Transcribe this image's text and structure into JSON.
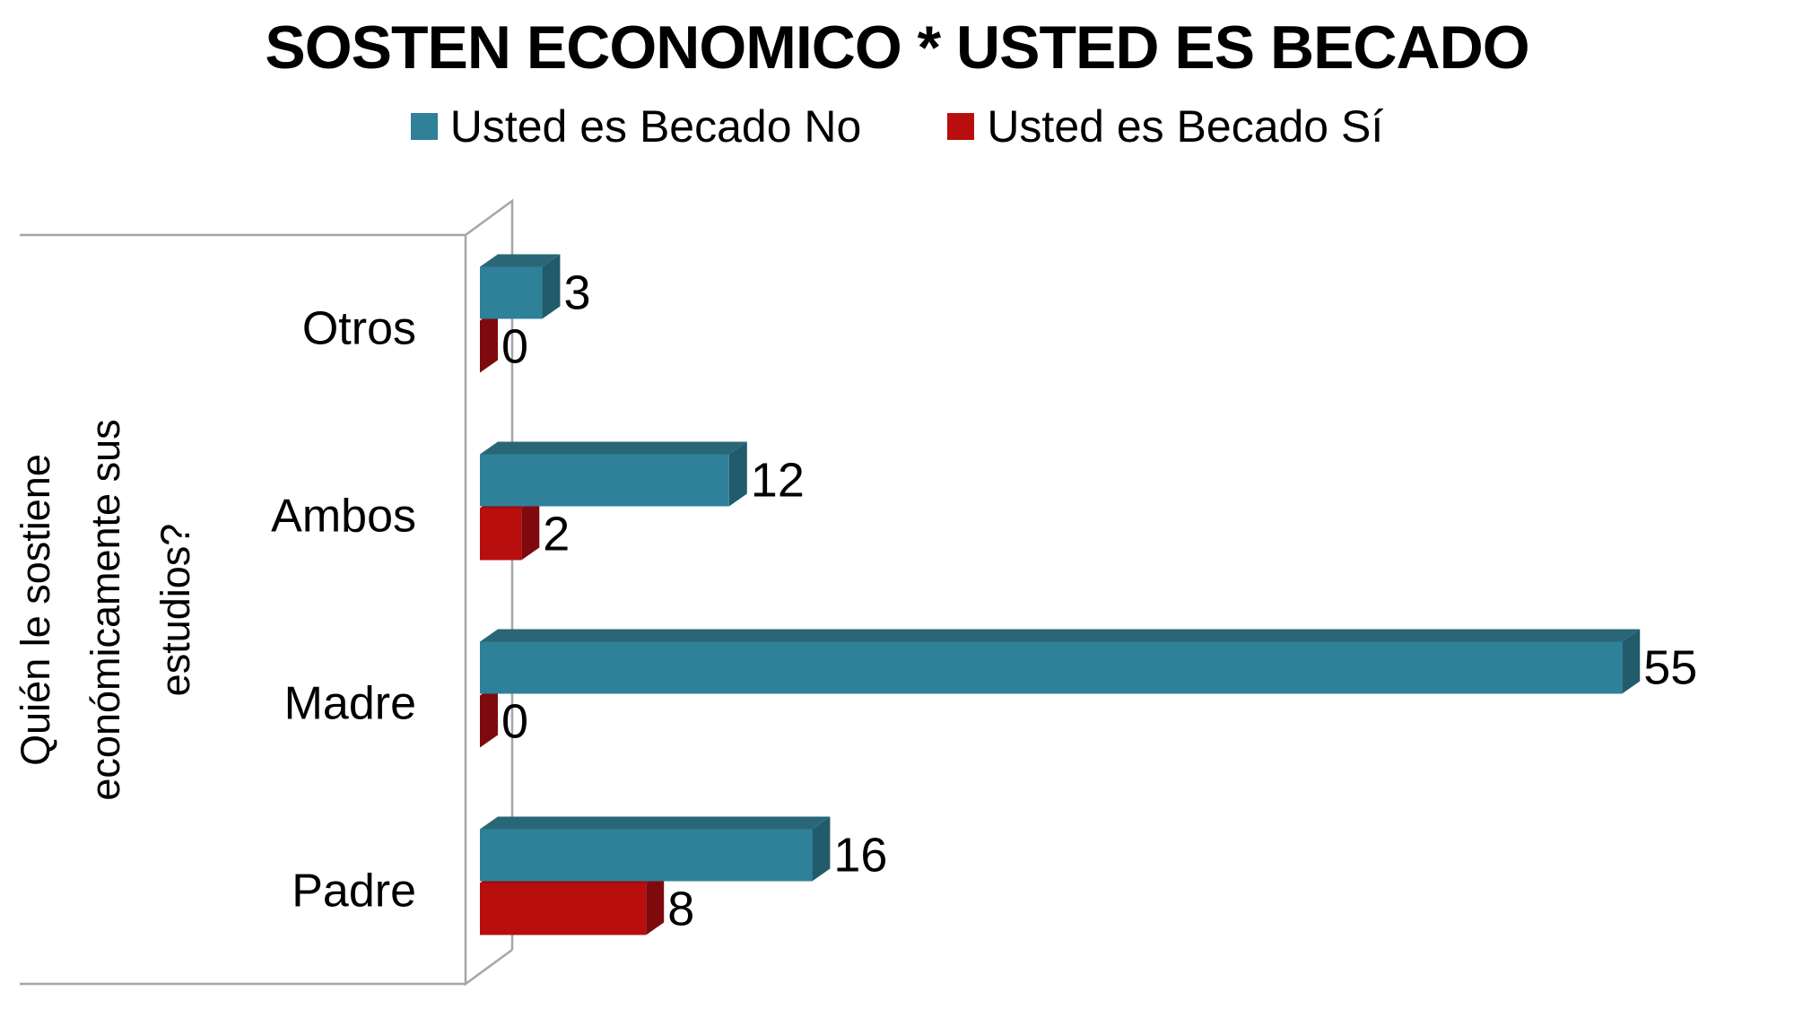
{
  "page": {
    "title": "SOSTEN ECONOMICO * USTED ES BECADO",
    "legend": [
      {
        "label": "Usted es Becado No",
        "color": "#2F8099"
      },
      {
        "label": "Usted es Becado Sí",
        "color": "#B80E0E"
      }
    ],
    "y_axis_title": {
      "line1": "Quién le sostiene",
      "line2": "económicamente sus",
      "line3": "estudios?"
    }
  },
  "chart_data": {
    "type": "bar",
    "orientation": "horizontal",
    "style": "3d",
    "title": "SOSTEN ECONOMICO * USTED ES BECADO",
    "categories": [
      "Otros",
      "Ambos",
      "Madre",
      "Padre"
    ],
    "series": [
      {
        "name": "Usted es Becado No",
        "values": [
          3,
          12,
          55,
          16
        ],
        "color": "#2F8099"
      },
      {
        "name": "Usted es Becado Sí",
        "values": [
          0,
          2,
          0,
          8
        ],
        "color": "#B80E0E"
      }
    ],
    "category_axis_title": "Quién le sostiene económicamente sus estudios?",
    "data_labels": true,
    "legend_position": "top",
    "value_axis_visible": false,
    "colors": {
      "series_shading": [
        {
          "front": "#2F8099",
          "top": "#296777",
          "side": "#215B6C"
        },
        {
          "front": "#B80E0E",
          "top": "#9A0B0D",
          "side": "#7E0A0E"
        }
      ],
      "frame_line": "#A6A6A6",
      "text": "#000000"
    }
  }
}
